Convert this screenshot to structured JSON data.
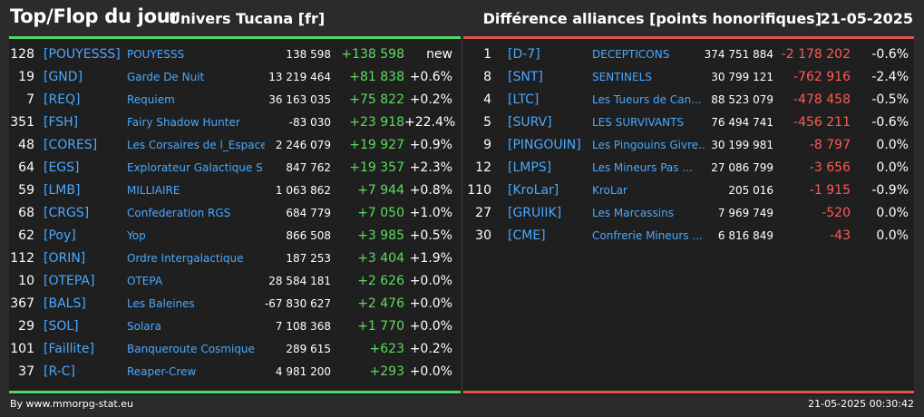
{
  "header": {
    "title": "Top/Flop du jour",
    "universe": "Univers Tucana [fr]",
    "right_title": "Différence alliances [points honorifiques]",
    "date": "21-05-2025"
  },
  "colors": {
    "top_accent": "#4cd964",
    "flop_accent": "#e0524a",
    "link": "#4aa8ff",
    "positive": "#5ddc5d",
    "negative": "#ff5a52"
  },
  "top": [
    {
      "rank": "128",
      "tag": "[POUYESSS]",
      "name": "POUYESSS",
      "score": "138 598",
      "diff": "+138 598",
      "pct": "new"
    },
    {
      "rank": "19",
      "tag": "[GND]",
      "name": "Garde De Nuit",
      "score": "13 219 464",
      "diff": "+81 838",
      "pct": "+0.6%"
    },
    {
      "rank": "7",
      "tag": "[REQ]",
      "name": "Requiem",
      "score": "36 163 035",
      "diff": "+75 822",
      "pct": "+0.2%"
    },
    {
      "rank": "351",
      "tag": "[FSH]",
      "name": "Fairy Shadow Hunter",
      "score": "-83 030",
      "diff": "+23 918",
      "pct": "+22.4%"
    },
    {
      "rank": "48",
      "tag": "[CORES]",
      "name": "Les Corsaires de l_Espace",
      "score": "2 246 079",
      "diff": "+19 927",
      "pct": "+0.9%"
    },
    {
      "rank": "64",
      "tag": "[EGS]",
      "name": "Explorateur Galactique S",
      "score": "847 762",
      "diff": "+19 357",
      "pct": "+2.3%"
    },
    {
      "rank": "59",
      "tag": "[LMB]",
      "name": "MILLIAIRE",
      "score": "1 063 862",
      "diff": "+7 944",
      "pct": "+0.8%"
    },
    {
      "rank": "68",
      "tag": "[CRGS]",
      "name": "Confederation RGS",
      "score": "684 779",
      "diff": "+7 050",
      "pct": "+1.0%"
    },
    {
      "rank": "62",
      "tag": "[Poy]",
      "name": "Yop",
      "score": "866 508",
      "diff": "+3 985",
      "pct": "+0.5%"
    },
    {
      "rank": "112",
      "tag": "[ORIN]",
      "name": "Ordre Intergalactique",
      "score": "187 253",
      "diff": "+3 404",
      "pct": "+1.9%"
    },
    {
      "rank": "10",
      "tag": "[OTEPA]",
      "name": "OTEPA",
      "score": "28 584 181",
      "diff": "+2 626",
      "pct": "+0.0%"
    },
    {
      "rank": "367",
      "tag": "[BALS]",
      "name": "Les Baleines",
      "score": "-67 830 627",
      "diff": "+2 476",
      "pct": "+0.0%"
    },
    {
      "rank": "29",
      "tag": "[SOL]",
      "name": "Solara",
      "score": "7 108 368",
      "diff": "+1 770",
      "pct": "+0.0%"
    },
    {
      "rank": "101",
      "tag": "[Faillite]",
      "name": "Banqueroute Cosmique",
      "score": "289 615",
      "diff": "+623",
      "pct": "+0.2%"
    },
    {
      "rank": "37",
      "tag": "[R-C]",
      "name": "Reaper-Crew",
      "score": "4 981 200",
      "diff": "+293",
      "pct": "+0.0%"
    }
  ],
  "flop": [
    {
      "rank": "1",
      "tag": "[D-7]",
      "name": "DECEPTICONS",
      "score": "374 751 884",
      "diff": "-2 178 202",
      "pct": "-0.6%"
    },
    {
      "rank": "8",
      "tag": "[SNT]",
      "name": "SENTINELS",
      "score": "30 799 121",
      "diff": "-762 916",
      "pct": "-2.4%"
    },
    {
      "rank": "4",
      "tag": "[LTC]",
      "name": "Les Tueurs de Can...",
      "score": "88 523 079",
      "diff": "-478 458",
      "pct": "-0.5%"
    },
    {
      "rank": "5",
      "tag": "[SURV]",
      "name": "LES SURVIVANTS",
      "score": "76 494 741",
      "diff": "-456 211",
      "pct": "-0.6%"
    },
    {
      "rank": "9",
      "tag": "[PINGOUIN]",
      "name": "Les Pingouins Givre...",
      "score": "30 199 981",
      "diff": "-8 797",
      "pct": "0.0%"
    },
    {
      "rank": "12",
      "tag": "[LMPS]",
      "name": "Les Mineurs Pas ...",
      "score": "27 086 799",
      "diff": "-3 656",
      "pct": "0.0%"
    },
    {
      "rank": "110",
      "tag": "[KroLar]",
      "name": "KroLar",
      "score": "205 016",
      "diff": "-1 915",
      "pct": "-0.9%"
    },
    {
      "rank": "27",
      "tag": "[GRUIIK]",
      "name": "Les Marcassins",
      "score": "7 969 749",
      "diff": "-520",
      "pct": "0.0%"
    },
    {
      "rank": "30",
      "tag": "[CME]",
      "name": "Confrerie Mineurs ...",
      "score": "6 816 849",
      "diff": "-43",
      "pct": "0.0%"
    }
  ],
  "footer": {
    "credit": "By www.mmorpg-stat.eu",
    "timestamp": "21-05-2025 00:30:42"
  }
}
